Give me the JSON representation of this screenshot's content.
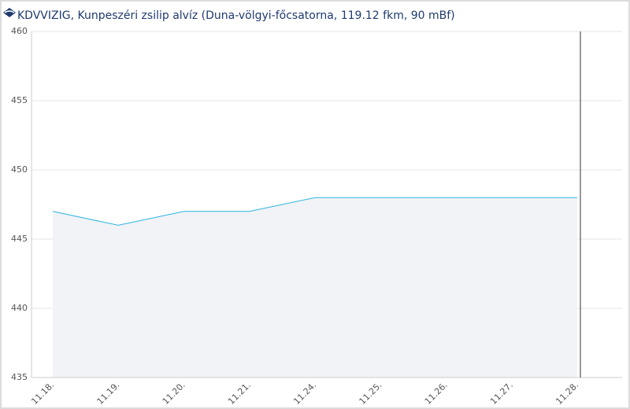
{
  "chart_data": {
    "type": "area",
    "title": "KDVVIZIG, Kunpeszéri zsilip alvíz (Duna-völgyi-főcsatorna, 119.12 fkm, 90 mBf)",
    "categories": [
      "11.18.",
      "11.19.",
      "11.20.",
      "11.21.",
      "11.24.",
      "11.25.",
      "11.26.",
      "11.27.",
      "11.28."
    ],
    "values": [
      447,
      446,
      447,
      447,
      448,
      448,
      448,
      448,
      448
    ],
    "color": "#2bb5e0",
    "fill": "#f2f3f7",
    "ylim": [
      435,
      460
    ],
    "yticks": [
      435,
      440,
      445,
      450,
      455,
      460
    ],
    "grid": true
  }
}
